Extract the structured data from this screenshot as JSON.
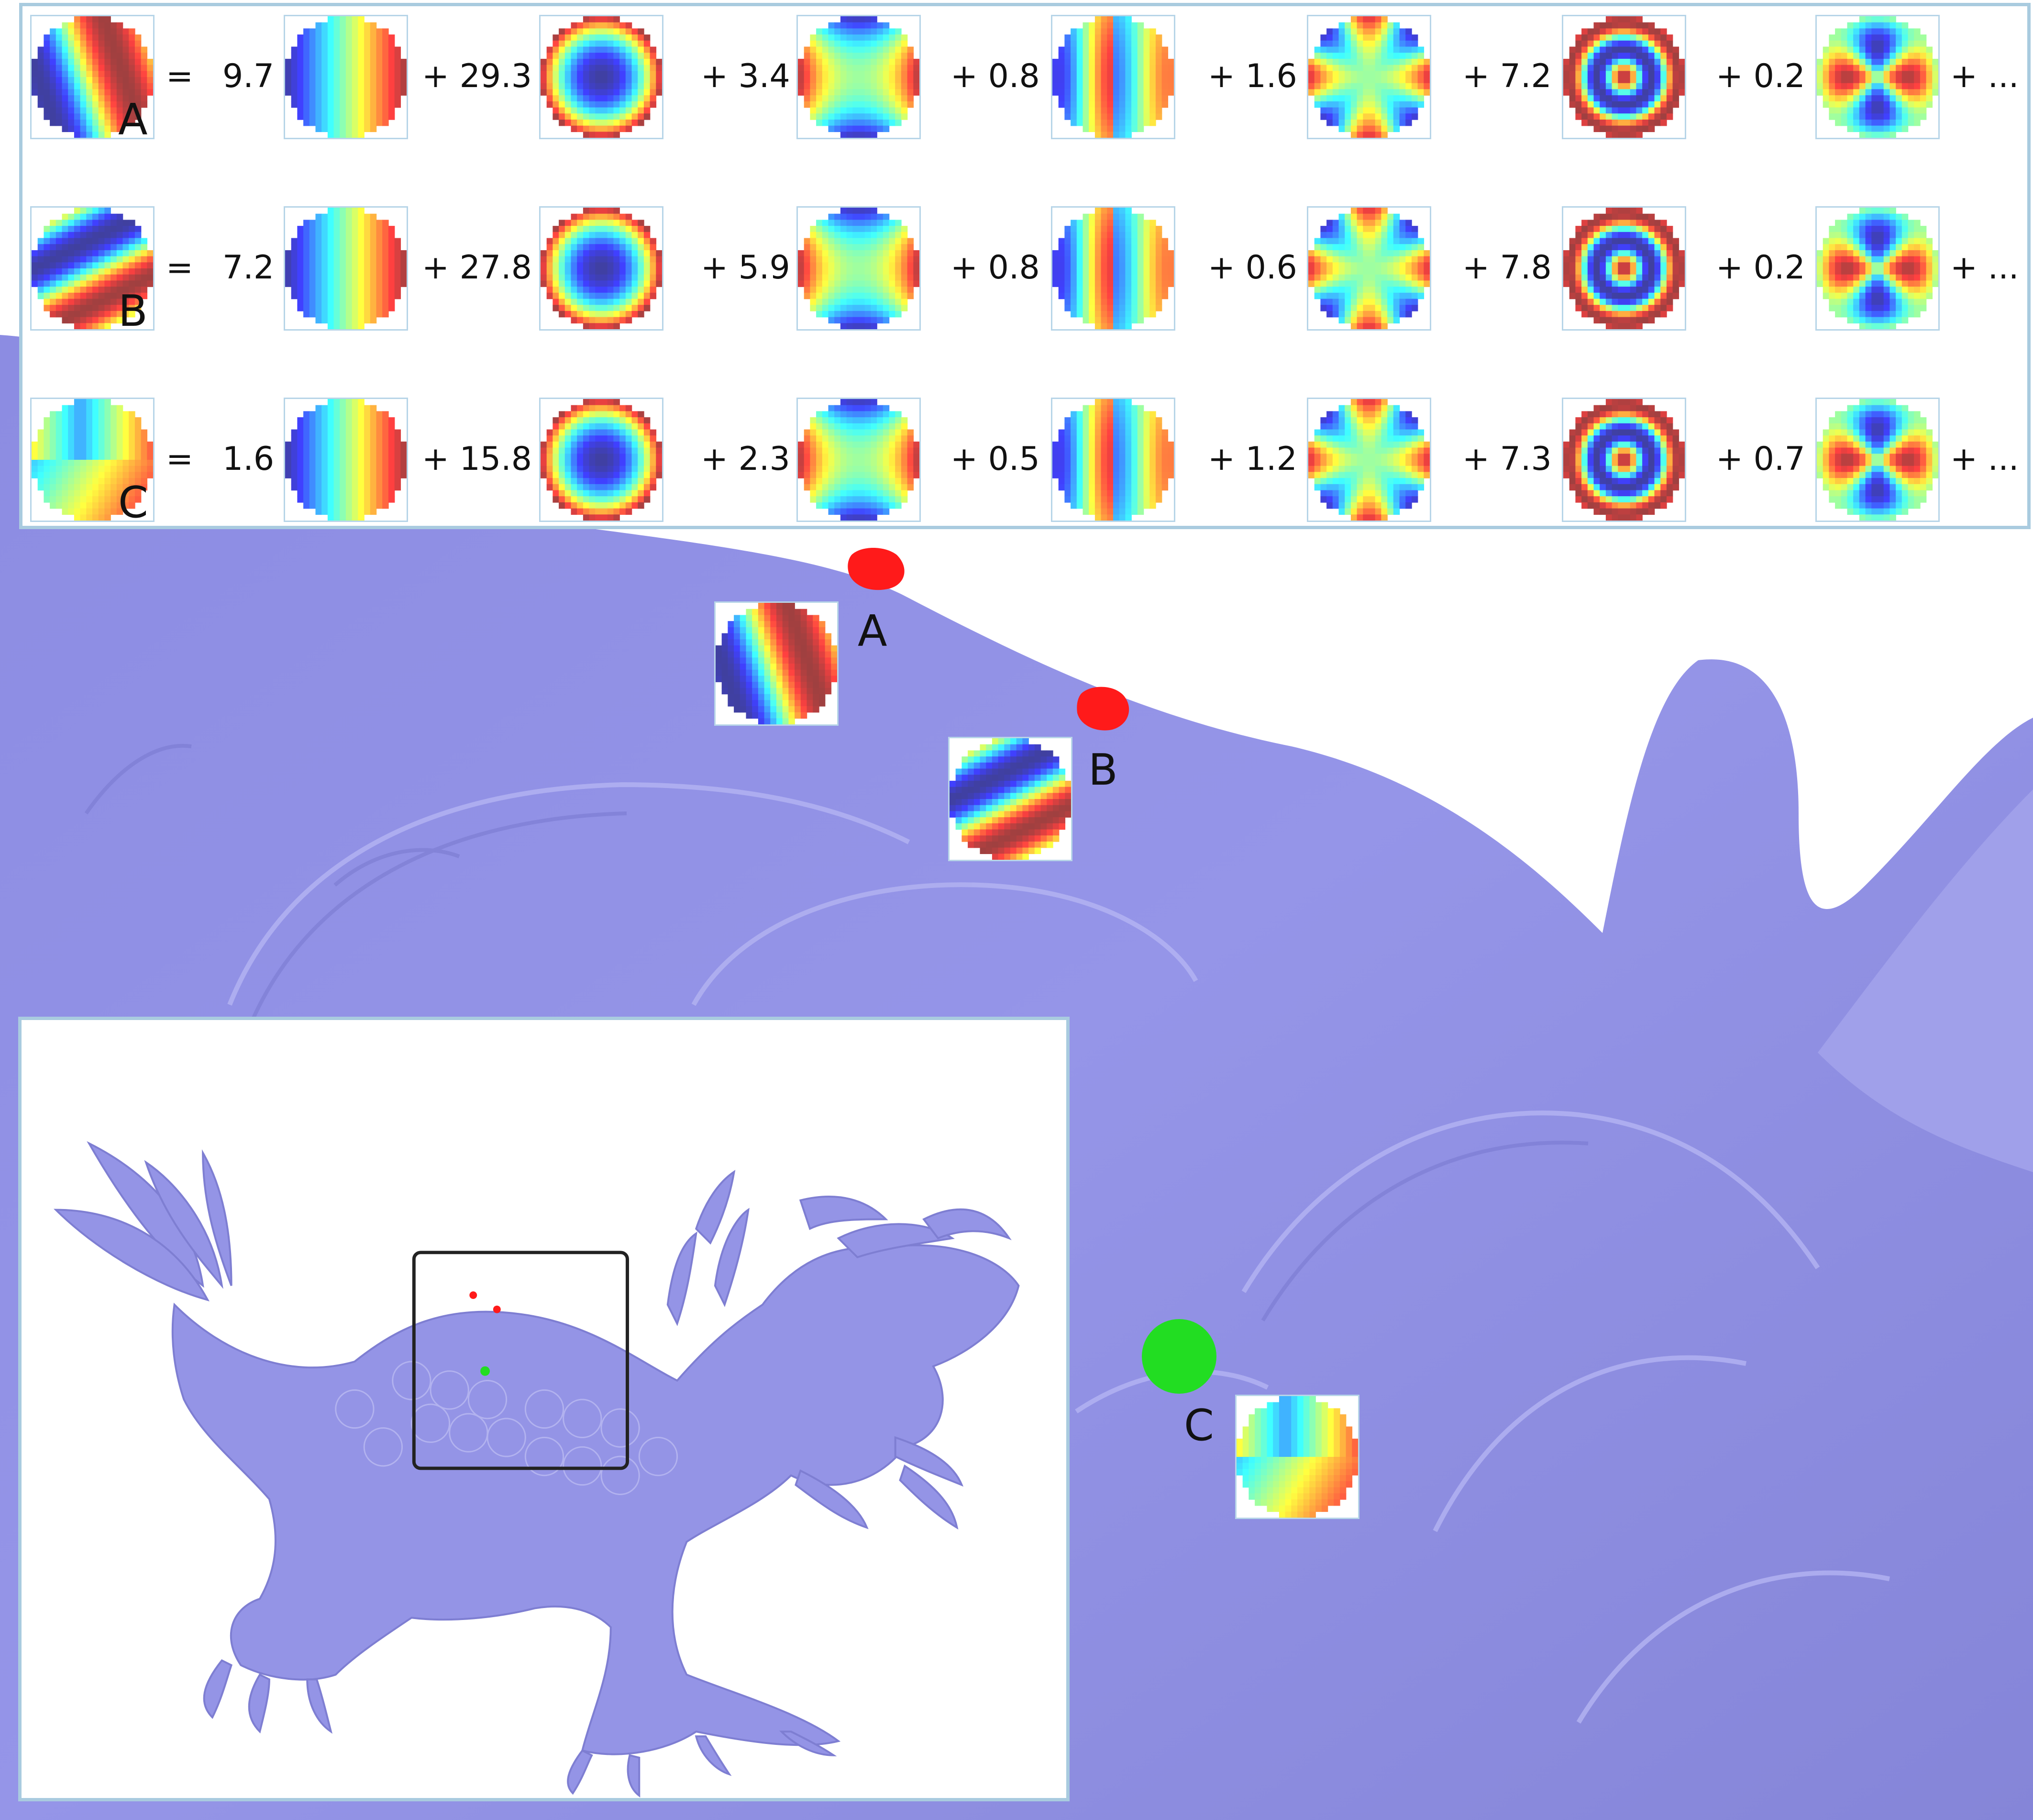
{
  "legend": {
    "equals": "=",
    "plus": "+",
    "ellipsis": "+ ..."
  },
  "rows": [
    {
      "label": "A",
      "coefficients": [
        "9.7",
        "29.3",
        "3.4",
        "0.8",
        "1.6",
        "7.2",
        "0.2"
      ]
    },
    {
      "label": "B",
      "coefficients": [
        "7.2",
        "27.8",
        "5.9",
        "0.8",
        "0.6",
        "7.8",
        "0.2"
      ]
    },
    {
      "label": "C",
      "coefficients": [
        "1.6",
        "15.8",
        "2.3",
        "0.5",
        "1.2",
        "7.3",
        "0.7"
      ]
    }
  ],
  "basis_patterns": [
    "horizontal-gradient",
    "radial-bowl",
    "saddle-cross",
    "two-lobe",
    "star",
    "rings",
    "four-lobe"
  ],
  "point_labels": {
    "a": "A",
    "b": "B",
    "c": "C"
  },
  "marker_colors": {
    "a": "#ff1a1a",
    "b": "#ff1a1a",
    "c": "#22dd22"
  },
  "colors": {
    "mesh": "#9494e6",
    "panel_border": "#a9cbdf",
    "inset_frame": "#222222"
  }
}
